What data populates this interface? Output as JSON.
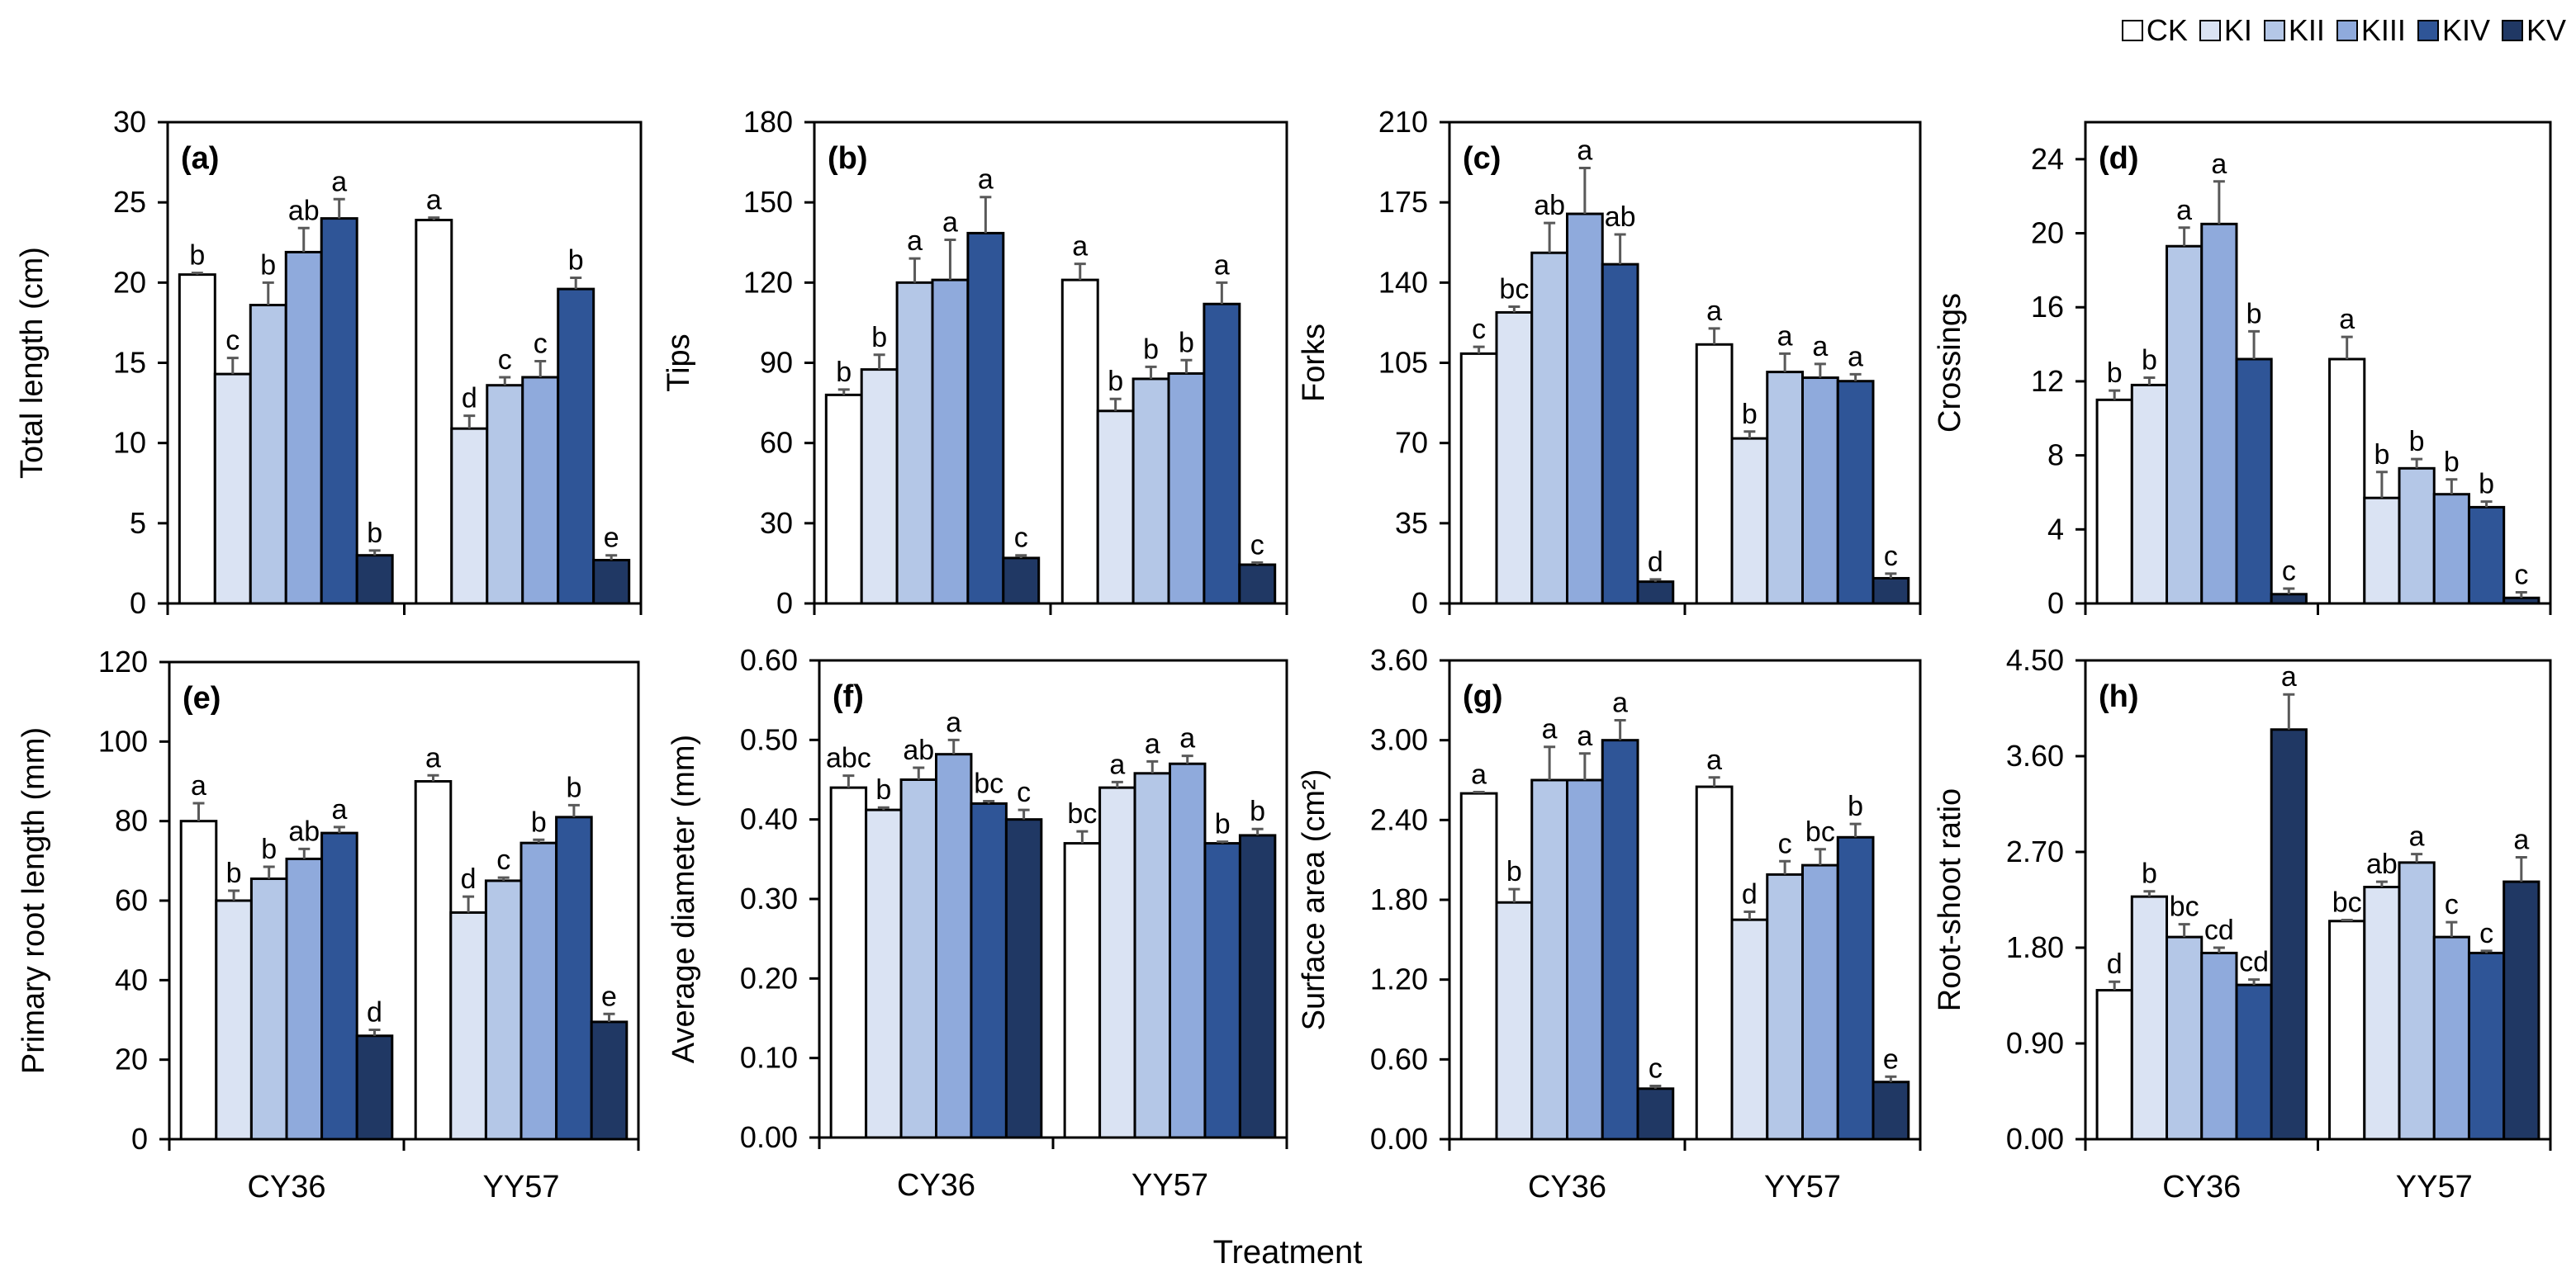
{
  "legend": [
    {
      "name": "CK",
      "color": "#ffffff"
    },
    {
      "name": "KI",
      "color": "#dae3f3"
    },
    {
      "name": "KII",
      "color": "#b4c7e7"
    },
    {
      "name": "KIII",
      "color": "#8faadc"
    },
    {
      "name": "KIV",
      "color": "#2f5597"
    },
    {
      "name": "KV",
      "color": "#203864"
    }
  ],
  "xlabel": "Treatment",
  "chart_data": [
    {
      "type": "bar",
      "panel": "(a)",
      "ylabel": "Total length (cm)",
      "ylim": [
        0,
        30
      ],
      "yticks": [
        "0",
        "5",
        "10",
        "15",
        "20",
        "25",
        "30"
      ],
      "categories": [
        "CY36",
        "YY57"
      ],
      "series": [
        {
          "name": "CK",
          "values": [
            20.5,
            23.9
          ],
          "errors": [
            0.1,
            0.15
          ],
          "letters": [
            "b",
            "a"
          ]
        },
        {
          "name": "KI",
          "values": [
            14.3,
            10.9
          ],
          "errors": [
            1.0,
            0.8
          ],
          "letters": [
            "c",
            "d"
          ]
        },
        {
          "name": "KII",
          "values": [
            18.6,
            13.6
          ],
          "errors": [
            1.4,
            0.5
          ],
          "letters": [
            "b",
            "c"
          ]
        },
        {
          "name": "KIII",
          "values": [
            21.9,
            14.1
          ],
          "errors": [
            1.5,
            1.0
          ],
          "letters": [
            "ab",
            "c"
          ]
        },
        {
          "name": "KIV",
          "values": [
            24.0,
            19.6
          ],
          "errors": [
            1.2,
            0.7
          ],
          "letters": [
            "a",
            "b"
          ]
        },
        {
          "name": "KV",
          "values": [
            3.0,
            2.7
          ],
          "errors": [
            0.3,
            0.3
          ],
          "letters": [
            "b",
            "e"
          ]
        }
      ]
    },
    {
      "type": "bar",
      "panel": "(b)",
      "ylabel": "Tips",
      "ylim": [
        0,
        180
      ],
      "yticks": [
        "0",
        "30",
        "60",
        "90",
        "120",
        "150",
        "180"
      ],
      "categories": [
        "CY36",
        "YY57"
      ],
      "series": [
        {
          "name": "CK",
          "values": [
            78,
            121
          ],
          "errors": [
            2,
            6
          ],
          "letters": [
            "b",
            "a"
          ]
        },
        {
          "name": "KI",
          "values": [
            87.5,
            72
          ],
          "errors": [
            5.5,
            4.5
          ],
          "letters": [
            "b",
            "b"
          ]
        },
        {
          "name": "KII",
          "values": [
            120,
            84
          ],
          "errors": [
            9,
            4.5
          ],
          "letters": [
            "a",
            "b"
          ]
        },
        {
          "name": "KIII",
          "values": [
            121,
            86
          ],
          "errors": [
            15,
            5
          ],
          "letters": [
            "a",
            "b"
          ]
        },
        {
          "name": "KIV",
          "values": [
            138.5,
            112
          ],
          "errors": [
            13.5,
            8
          ],
          "letters": [
            "a",
            "a"
          ]
        },
        {
          "name": "KV",
          "values": [
            17,
            14.5
          ],
          "errors": [
            1,
            0.8
          ],
          "letters": [
            "c",
            "c"
          ]
        }
      ]
    },
    {
      "type": "bar",
      "panel": "(c)",
      "ylabel": "Forks",
      "ylim": [
        0,
        210
      ],
      "yticks": [
        "0",
        "35",
        "70",
        "105",
        "140",
        "175",
        "210"
      ],
      "categories": [
        "CY36",
        "YY57"
      ],
      "series": [
        {
          "name": "CK",
          "values": [
            109,
            113
          ],
          "errors": [
            3,
            7
          ],
          "letters": [
            "c",
            "a"
          ]
        },
        {
          "name": "KI",
          "values": [
            127,
            72
          ],
          "errors": [
            2.5,
            3
          ],
          "letters": [
            "bc",
            "b"
          ]
        },
        {
          "name": "KII",
          "values": [
            153,
            101
          ],
          "errors": [
            13,
            8
          ],
          "letters": [
            "ab",
            "a"
          ]
        },
        {
          "name": "KIII",
          "values": [
            170,
            98.5
          ],
          "errors": [
            20,
            6
          ],
          "letters": [
            "a",
            "a"
          ]
        },
        {
          "name": "KIV",
          "values": [
            148,
            97
          ],
          "errors": [
            13,
            3
          ],
          "letters": [
            "ab",
            "a"
          ]
        },
        {
          "name": "KV",
          "values": [
            9.5,
            11
          ],
          "errors": [
            1,
            2
          ],
          "letters": [
            "d",
            "c"
          ]
        }
      ]
    },
    {
      "type": "bar",
      "panel": "(d)",
      "ylabel": "Crossings",
      "ylim": [
        0,
        26
      ],
      "yticks": [
        "0",
        "4",
        "8",
        "12",
        "16",
        "20",
        "24"
      ],
      "categories": [
        "CY36",
        "YY57"
      ],
      "series": [
        {
          "name": "CK",
          "values": [
            11,
            13.2
          ],
          "errors": [
            0.5,
            1.2
          ],
          "letters": [
            "b",
            "a"
          ]
        },
        {
          "name": "KI",
          "values": [
            11.8,
            5.7
          ],
          "errors": [
            0.4,
            1.4
          ],
          "letters": [
            "b",
            "b"
          ]
        },
        {
          "name": "KII",
          "values": [
            19.3,
            7.3
          ],
          "errors": [
            1,
            0.5
          ],
          "letters": [
            "a",
            "b"
          ]
        },
        {
          "name": "KIII",
          "values": [
            20.5,
            5.9
          ],
          "errors": [
            2.3,
            0.8
          ],
          "letters": [
            "a",
            "b"
          ]
        },
        {
          "name": "KIV",
          "values": [
            13.2,
            5.2
          ],
          "errors": [
            1.5,
            0.3
          ],
          "letters": [
            "b",
            "b"
          ]
        },
        {
          "name": "KV",
          "values": [
            0.5,
            0.3
          ],
          "errors": [
            0.3,
            0.3
          ],
          "letters": [
            "c",
            "c"
          ]
        }
      ]
    },
    {
      "type": "bar",
      "panel": "(e)",
      "ylabel": "Primary root length (mm)",
      "ylim": [
        0,
        120
      ],
      "yticks": [
        "0",
        "20",
        "40",
        "60",
        "80",
        "100",
        "120"
      ],
      "categories": [
        "CY36",
        "YY57"
      ],
      "series": [
        {
          "name": "CK",
          "values": [
            80,
            90
          ],
          "errors": [
            4.5,
            1.5
          ],
          "letters": [
            "a",
            "a"
          ]
        },
        {
          "name": "KI",
          "values": [
            60,
            57
          ],
          "errors": [
            2.5,
            4
          ],
          "letters": [
            "b",
            "d"
          ]
        },
        {
          "name": "KII",
          "values": [
            65.5,
            65
          ],
          "errors": [
            3,
            0.8
          ],
          "letters": [
            "b",
            "c"
          ]
        },
        {
          "name": "KIII",
          "values": [
            70.5,
            74.5
          ],
          "errors": [
            2.5,
            0.8
          ],
          "letters": [
            "ab",
            "b"
          ]
        },
        {
          "name": "KIV",
          "values": [
            77,
            81
          ],
          "errors": [
            1.5,
            3
          ],
          "letters": [
            "a",
            "b"
          ]
        },
        {
          "name": "KV",
          "values": [
            26,
            29.5
          ],
          "errors": [
            1.5,
            2
          ],
          "letters": [
            "d",
            "e"
          ]
        }
      ]
    },
    {
      "type": "bar",
      "panel": "(f)",
      "ylabel": "Average diameter (mm)",
      "ylim": [
        0,
        0.6
      ],
      "yticks": [
        "0.00",
        "0.10",
        "0.20",
        "0.30",
        "0.40",
        "0.50",
        "0.60"
      ],
      "categories": [
        "CY36",
        "YY57"
      ],
      "series": [
        {
          "name": "CK",
          "values": [
            0.44,
            0.37
          ],
          "errors": [
            0.015,
            0.015
          ],
          "letters": [
            "abc",
            "bc"
          ]
        },
        {
          "name": "KI",
          "values": [
            0.412,
            0.44
          ],
          "errors": [
            0.003,
            0.007
          ],
          "letters": [
            "b",
            "a"
          ]
        },
        {
          "name": "KII",
          "values": [
            0.45,
            0.458
          ],
          "errors": [
            0.015,
            0.015
          ],
          "letters": [
            "ab",
            "a"
          ]
        },
        {
          "name": "KIII",
          "values": [
            0.482,
            0.47
          ],
          "errors": [
            0.018,
            0.01
          ],
          "letters": [
            "a",
            "a"
          ]
        },
        {
          "name": "KIV",
          "values": [
            0.42,
            0.37
          ],
          "errors": [
            0.003,
            0.002
          ],
          "letters": [
            "bc",
            "b"
          ]
        },
        {
          "name": "KV",
          "values": [
            0.4,
            0.38
          ],
          "errors": [
            0.012,
            0.008
          ],
          "letters": [
            "c",
            "b"
          ]
        }
      ]
    },
    {
      "type": "bar",
      "panel": "(g)",
      "ylabel": "Surface area (cm²)",
      "ylim": [
        0,
        3.6
      ],
      "yticks": [
        "0.00",
        "0.60",
        "1.20",
        "1.80",
        "2.40",
        "3.00",
        "3.60"
      ],
      "categories": [
        "CY36",
        "YY57"
      ],
      "series": [
        {
          "name": "CK",
          "values": [
            2.6,
            2.65
          ],
          "errors": [
            0.01,
            0.07
          ],
          "letters": [
            "a",
            "a"
          ]
        },
        {
          "name": "KI",
          "values": [
            1.78,
            1.65
          ],
          "errors": [
            0.1,
            0.06
          ],
          "letters": [
            "b",
            "d"
          ]
        },
        {
          "name": "KII",
          "values": [
            2.7,
            1.99
          ],
          "errors": [
            0.25,
            0.1
          ],
          "letters": [
            "a",
            "c"
          ]
        },
        {
          "name": "KIII",
          "values": [
            2.7,
            2.06
          ],
          "errors": [
            0.2,
            0.12
          ],
          "letters": [
            "a",
            "bc"
          ]
        },
        {
          "name": "KIV",
          "values": [
            3.0,
            2.27
          ],
          "errors": [
            0.15,
            0.1
          ],
          "letters": [
            "a",
            "b"
          ]
        },
        {
          "name": "KV",
          "values": [
            0.38,
            0.43
          ],
          "errors": [
            0.02,
            0.04
          ],
          "letters": [
            "c",
            "e"
          ]
        }
      ]
    },
    {
      "type": "bar",
      "panel": "(h)",
      "ylabel": "Root-shoot ratio",
      "ylim": [
        0,
        4.5
      ],
      "yticks": [
        "0.00",
        "0.90",
        "1.80",
        "2.70",
        "3.60",
        "4.50"
      ],
      "categories": [
        "CY36",
        "YY57"
      ],
      "series": [
        {
          "name": "CK",
          "values": [
            1.4,
            2.05
          ],
          "errors": [
            0.08,
            0.01
          ],
          "letters": [
            "d",
            "bc"
          ]
        },
        {
          "name": "KI",
          "values": [
            2.28,
            2.37
          ],
          "errors": [
            0.05,
            0.05
          ],
          "letters": [
            "b",
            "ab"
          ]
        },
        {
          "name": "KII",
          "values": [
            1.9,
            2.6
          ],
          "errors": [
            0.12,
            0.08
          ],
          "letters": [
            "bc",
            "a"
          ]
        },
        {
          "name": "KIII",
          "values": [
            1.75,
            1.9
          ],
          "errors": [
            0.05,
            0.14
          ],
          "letters": [
            "cd",
            "c"
          ]
        },
        {
          "name": "KIV",
          "values": [
            1.45,
            1.75
          ],
          "errors": [
            0.05,
            0.02
          ],
          "letters": [
            "cd",
            "c"
          ]
        },
        {
          "name": "KV",
          "values": [
            3.85,
            2.42
          ],
          "errors": [
            0.33,
            0.23
          ],
          "letters": [
            "a",
            "a"
          ]
        }
      ]
    }
  ]
}
